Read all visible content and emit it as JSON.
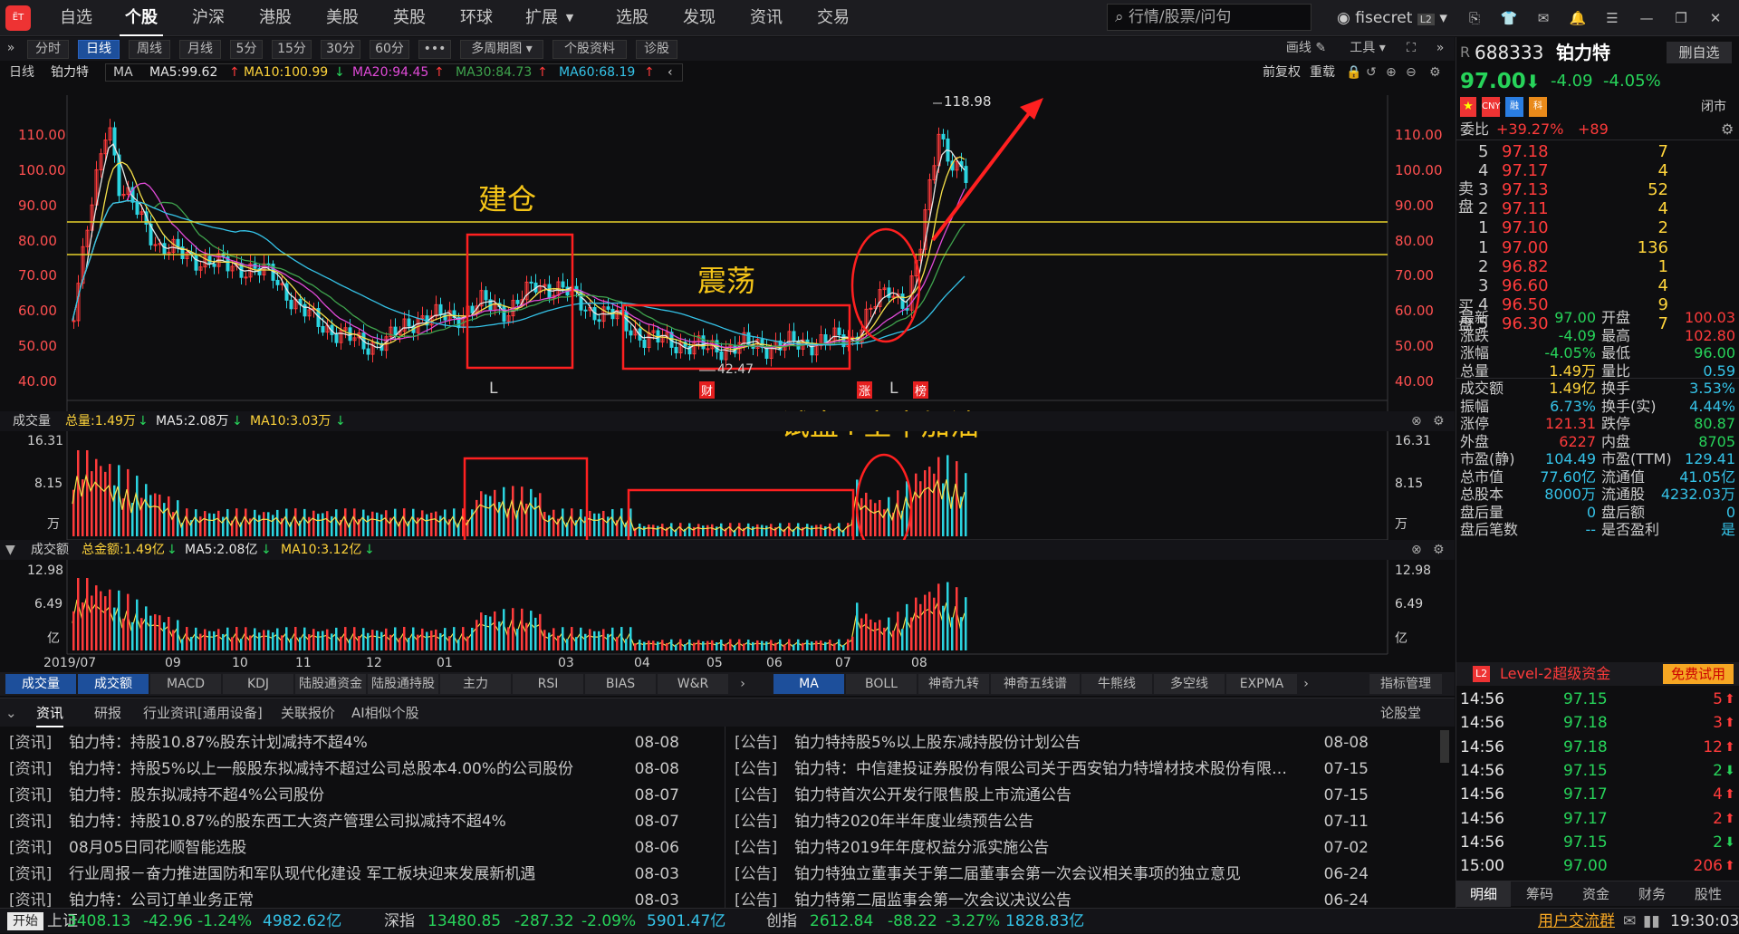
{
  "app": {
    "logo": "ЁТ",
    "user": "fisecret",
    "search_placeholder": "行情/股票/问句"
  },
  "nav": [
    "自选",
    "个股",
    "沪深",
    "港股",
    "美股",
    "英股",
    "环球",
    "扩展",
    "选股",
    "发现",
    "资讯",
    "交易"
  ],
  "toolbar": {
    "periods": [
      "分时",
      "日线",
      "周线",
      "月线",
      "5分",
      "15分",
      "30分",
      "60分"
    ],
    "more": "•••",
    "multi": "多周期图",
    "profile": "个股资料",
    "diagnose": "诊股",
    "draw": "画线",
    "tools": "工具"
  },
  "ma_bar": {
    "period": "日线",
    "stock": "铂力特",
    "ma": "MA",
    "ma5": "MA5:99.62",
    "ma10": "MA10:100.99",
    "ma20": "MA20:94.45",
    "ma30": "MA30:84.73",
    "ma60": "MA60:68.19",
    "adjust": "前复权",
    "reset": "重载"
  },
  "main_chart": {
    "y_labels": [
      "110.00",
      "100.00",
      "90.00",
      "80.00",
      "70.00",
      "60.00",
      "50.00",
      "40.00"
    ],
    "high_marker": "118.98",
    "low_marker": "42.47",
    "annotations": {
      "build": "建仓",
      "shake": "震荡",
      "test": "试盘+空中加油"
    },
    "markers": [
      "L",
      "财",
      "涨",
      "L",
      "榜"
    ]
  },
  "volume_panel": {
    "title": "成交量",
    "total": "总量:1.49万",
    "ma5": "MA5:2.08万",
    "ma10": "MA10:3.03万",
    "y_labels": [
      "16.31",
      "8.15",
      "万"
    ]
  },
  "amount_panel": {
    "title": "成交额",
    "total": "总金额:1.49亿",
    "ma5": "MA5:2.08亿",
    "ma10": "MA10:3.12亿",
    "y_labels": [
      "12.98",
      "6.49",
      "亿"
    ]
  },
  "x_labels": [
    "2019/07",
    "09",
    "10",
    "11",
    "12",
    "01",
    "03",
    "04",
    "05",
    "06",
    "07",
    "08"
  ],
  "indicator_tabs_left": [
    "成交量",
    "成交额",
    "MACD",
    "KDJ",
    "陆股通资金",
    "陆股通持股",
    "主力",
    "RSI",
    "BIAS",
    "W&R"
  ],
  "indicator_tabs_right": [
    "MA",
    "BOLL",
    "神奇九转",
    "神奇五线谱",
    "牛熊线",
    "多空线",
    "EXPMA"
  ],
  "indicator_manage": "指标管理",
  "news_tabs": [
    "资讯",
    "研报",
    "行业资讯[通用设备]",
    "关联报价",
    "AI相似个股"
  ],
  "news_right_tab": "论股堂",
  "news_left": [
    {
      "tag": "[资讯]",
      "title": "铂力特：持股10.87%股东计划减持不超4%",
      "date": "08-08"
    },
    {
      "tag": "[资讯]",
      "title": "铂力特：持股5%以上一般股东拟减持不超过公司总股本4.00%的公司股份",
      "date": "08-08"
    },
    {
      "tag": "[资讯]",
      "title": "铂力特：股东拟减持不超4%公司股份",
      "date": "08-07"
    },
    {
      "tag": "[资讯]",
      "title": "铂力特：持股10.87%的股东西工大资产管理公司拟减持不超4%",
      "date": "08-07"
    },
    {
      "tag": "[资讯]",
      "title": "08月05日同花顺智能选股",
      "date": "08-06"
    },
    {
      "tag": "[资讯]",
      "title": "行业周报－奋力推进国防和军队现代化建设 军工板块迎来发展新机遇",
      "date": "08-03"
    },
    {
      "tag": "[资讯]",
      "title": "铂力特：公司订单业务正常",
      "date": "08-03"
    }
  ],
  "news_right": [
    {
      "tag": "[公告]",
      "title": "铂力特持股5%以上股东减持股份计划公告",
      "date": "08-08"
    },
    {
      "tag": "[公告]",
      "title": "铂力特：中信建投证券股份有限公司关于西安铂力特增材技术股份有限公司首...",
      "date": "07-15"
    },
    {
      "tag": "[公告]",
      "title": "铂力特首次公开发行限售股上市流通公告",
      "date": "07-15"
    },
    {
      "tag": "[公告]",
      "title": "铂力特2020年半年度业绩预告公告",
      "date": "07-11"
    },
    {
      "tag": "[公告]",
      "title": "铂力特2019年年度权益分派实施公告",
      "date": "07-02"
    },
    {
      "tag": "[公告]",
      "title": "铂力特独立董事关于第二届董事会第一次会议相关事项的独立意见",
      "date": "06-24"
    },
    {
      "tag": "[公告]",
      "title": "铂力特第二届监事会第一次会议决议公告",
      "date": "06-24"
    }
  ],
  "quote": {
    "prefix": "R",
    "code": "688333",
    "name": "铂力特",
    "remove": "删自选",
    "price": "97.00",
    "change": "-4.09",
    "pct": "-4.05%",
    "close_label": "闭市",
    "weibi_label": "委比",
    "weibi": "+39.27%",
    "weicha": "+89",
    "sell": [
      {
        "lv": "5",
        "p": "97.18",
        "v": "7"
      },
      {
        "lv": "4",
        "p": "97.17",
        "v": "4"
      },
      {
        "lv": "3",
        "p": "97.13",
        "v": "52"
      },
      {
        "lv": "2",
        "p": "97.11",
        "v": "4"
      },
      {
        "lv": "1",
        "p": "97.10",
        "v": "2"
      }
    ],
    "buy": [
      {
        "lv": "1",
        "p": "97.00",
        "v": "136"
      },
      {
        "lv": "2",
        "p": "96.82",
        "v": "1"
      },
      {
        "lv": "3",
        "p": "96.60",
        "v": "4"
      },
      {
        "lv": "4",
        "p": "96.50",
        "v": "9"
      },
      {
        "lv": "5",
        "p": "96.30",
        "v": "7"
      }
    ],
    "sell_label": "卖盘",
    "buy_label": "买盘",
    "stats": [
      [
        "最新",
        "97.00",
        "开盘",
        "100.03"
      ],
      [
        "涨跌",
        "-4.09",
        "最高",
        "102.80"
      ],
      [
        "涨幅",
        "-4.05%",
        "最低",
        "96.00"
      ],
      [
        "总量",
        "1.49万",
        "量比",
        "0.59"
      ],
      [
        "成交额",
        "1.49亿",
        "换手",
        "3.53%"
      ],
      [
        "振幅",
        "6.73%",
        "换手(实)",
        "4.44%"
      ],
      [
        "涨停",
        "121.31",
        "跌停",
        "80.87"
      ],
      [
        "外盘",
        "6227",
        "内盘",
        "8705"
      ],
      [
        "市盈(静)",
        "104.49",
        "市盈(TTM)",
        "129.41"
      ],
      [
        "总市值",
        "77.60亿",
        "流通值",
        "41.05亿"
      ],
      [
        "总股本",
        "8000万",
        "流通股",
        "4232.03万"
      ],
      [
        "盘后量",
        "0",
        "盘后额",
        "0"
      ],
      [
        "盘后笔数",
        "--",
        "是否盈利",
        "是"
      ]
    ],
    "level2": "Level-2超级资金",
    "trial": "免费试用",
    "ticks": [
      [
        "14:56",
        "97.15",
        "5"
      ],
      [
        "14:56",
        "97.18",
        "3"
      ],
      [
        "14:56",
        "97.18",
        "12"
      ],
      [
        "14:56",
        "97.15",
        "2"
      ],
      [
        "14:56",
        "97.17",
        "4"
      ],
      [
        "14:56",
        "97.17",
        "2"
      ],
      [
        "14:56",
        "97.15",
        "2"
      ],
      [
        "15:00",
        "97.00",
        "206"
      ]
    ],
    "bottom_tabs": [
      "明细",
      "筹码",
      "资金",
      "财务",
      "股性"
    ]
  },
  "status": {
    "start": "开始",
    "sh_label": "上证",
    "sh": "3408.13",
    "sh_chg": "-42.96",
    "sh_pct": "-1.24%",
    "sh_amt": "4982.62亿",
    "sz_label": "深指",
    "sz": "13480.85",
    "sz_chg": "-287.32",
    "sz_pct": "-2.09%",
    "sz_amt": "5901.47亿",
    "cy_label": "创指",
    "cy": "2612.84",
    "cy_chg": "-88.22",
    "cy_pct": "-3.27%",
    "cy_amt": "1828.83亿",
    "group": "用户交流群",
    "time": "19:30:03"
  }
}
